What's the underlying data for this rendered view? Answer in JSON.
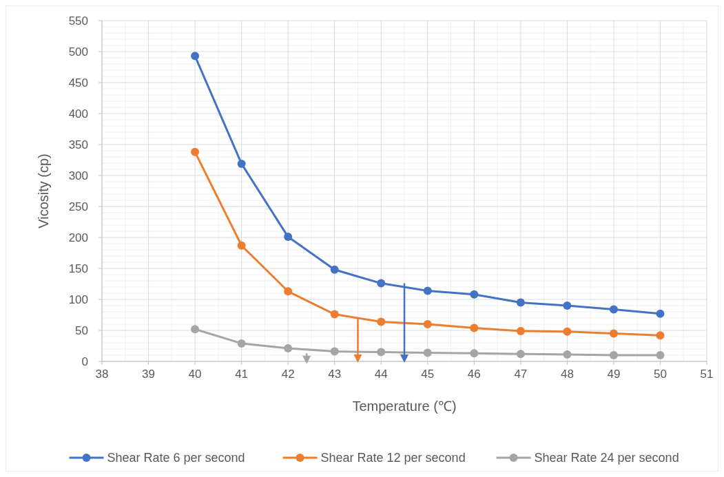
{
  "chart_data": {
    "type": "line",
    "xlabel": "Temperature (℃)",
    "ylabel": "Vicosity (cp)",
    "x": [
      40,
      41,
      42,
      43,
      44,
      45,
      46,
      47,
      48,
      49,
      50
    ],
    "xlim": [
      38,
      51
    ],
    "xticks": [
      38,
      39,
      40,
      41,
      42,
      43,
      44,
      45,
      46,
      47,
      48,
      49,
      50,
      51
    ],
    "ylim": [
      0,
      550
    ],
    "yticks": [
      0,
      50,
      100,
      150,
      200,
      250,
      300,
      350,
      400,
      450,
      500,
      550
    ],
    "grid": true,
    "legend": "bottom",
    "marker": "circle",
    "line_style": "solid",
    "series": [
      {
        "name": "Shear Rate 6 per second",
        "color": "#4472c4",
        "values": [
          493,
          319,
          201,
          148,
          126,
          114,
          108,
          95,
          90,
          84,
          77
        ]
      },
      {
        "name": "Shear Rate 12 per second",
        "color": "#ed7d31",
        "values": [
          338,
          187,
          113,
          76,
          64,
          60,
          54,
          49,
          48,
          45,
          42
        ]
      },
      {
        "name": "Shear Rate 24 per second",
        "color": "#a5a5a5",
        "values": [
          52,
          29,
          21,
          16,
          15,
          14,
          13,
          12,
          11,
          10,
          10
        ]
      }
    ]
  }
}
